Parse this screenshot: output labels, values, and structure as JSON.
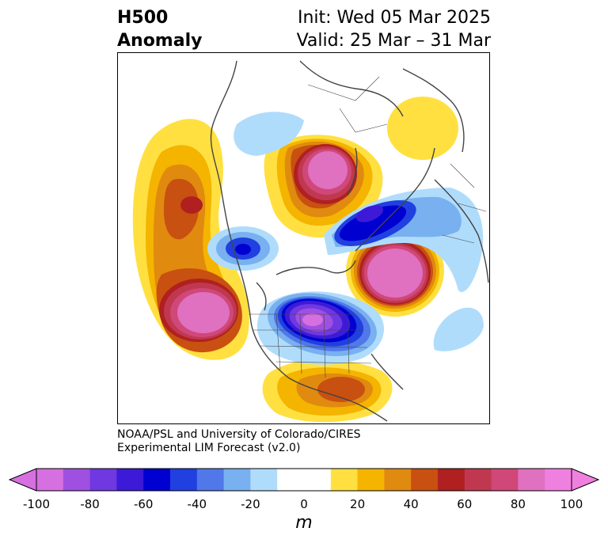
{
  "header": {
    "title_line1": "H500",
    "title_line2": "Anomaly",
    "init": "Init: Wed 05 Mar 2025",
    "valid": "Valid: 25 Mar – 31 Mar"
  },
  "credit": {
    "line1": "NOAA/PSL and University of Colorado/CIRES",
    "line2": "Experimental LIM Forecast (v2.0)"
  },
  "colorbar": {
    "units": "m",
    "tick_labels": [
      "-100",
      "-80",
      "-60",
      "-40",
      "-20",
      "0",
      "20",
      "40",
      "60",
      "80",
      "100"
    ],
    "colors": [
      "#d670e0",
      "#a050e0",
      "#7038e0",
      "#3c1ad8",
      "#0000d0",
      "#2040e0",
      "#5078e8",
      "#78b0f0",
      "#b0dcfc",
      "#ffffff",
      "#ffffff",
      "#ffe040",
      "#f4b400",
      "#e08a10",
      "#c85010",
      "#b02020",
      "#c03850",
      "#d04878",
      "#e070c0",
      "#f080e0"
    ]
  },
  "map": {
    "colors": {
      "coast": "#444444",
      "pos_light": "#ffe040",
      "pos_mid": "#f4b400",
      "pos_dark": "#e08a10",
      "pos_deep": "#c85010",
      "pos_red": "#b02020",
      "pos_crimson": "#c03850",
      "pos_magenta": "#e070c0",
      "neg_light": "#b0dcfc",
      "neg_mid": "#78b0f0",
      "neg_blue": "#2040e0",
      "neg_deep": "#0000d0",
      "neg_purple": "#7038e0",
      "neg_violet": "#d670e0"
    }
  }
}
